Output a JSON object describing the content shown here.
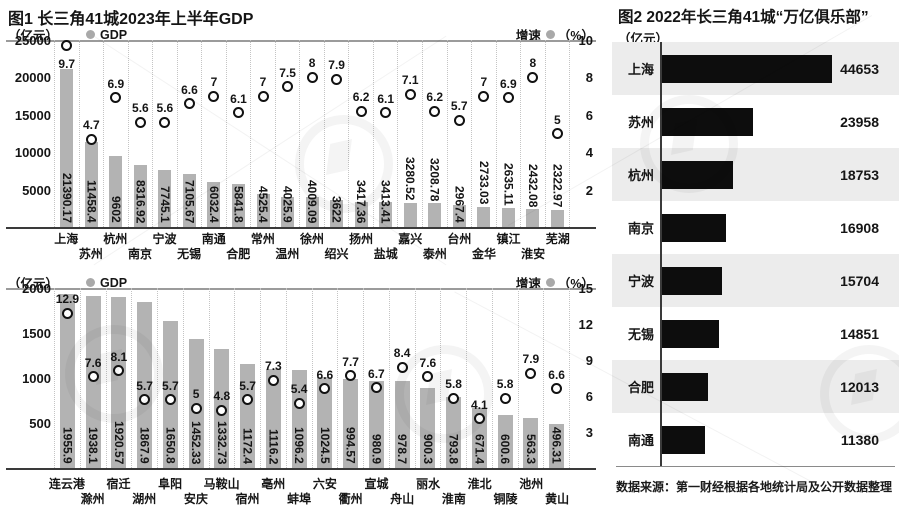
{
  "figure1": {
    "title": "图1 长三角41城2023年上半年GDP",
    "unit_left": "（亿元）",
    "legend_gdp": "GDP",
    "legend_growth": "增速",
    "unit_right": "（%）"
  },
  "figure2": {
    "title": "图2  2022年长三角41城“万亿俱乐部”",
    "unit": "（亿元）"
  },
  "source": "数据来源：第一财经根据各地统计局及公开数据整理",
  "colors": {
    "bar_gray": "#b3b3b3",
    "bar_black": "#0d0d0d",
    "row_band": "#ececec",
    "marker_outline": "#111111",
    "marker_fill": "#ffffff",
    "legend_dot": "#a9a9a9"
  },
  "chart_data": [
    {
      "type": "bar",
      "subtype": "bar+scatter combo",
      "title": "图1 长三角41城2023年上半年GDP",
      "categories": [
        "上海",
        "苏州",
        "杭州",
        "南京",
        "宁波",
        "无锡",
        "南通",
        "合肥",
        "常州",
        "温州",
        "徐州",
        "绍兴",
        "扬州",
        "盐城",
        "嘉兴",
        "泰州",
        "台州",
        "金华",
        "镇江",
        "淮安",
        "芜湖"
      ],
      "series": [
        {
          "name": "GDP",
          "type": "bar",
          "unit": "亿元",
          "values": [
            21390.17,
            11458.4,
            9602,
            8316.92,
            7745.1,
            7105.67,
            6032.4,
            5841.8,
            4525.4,
            4025.9,
            4009.09,
            3622,
            3417.36,
            3413.41,
            3280.52,
            3208.78,
            2967.4,
            2733.03,
            2635.11,
            2432.08,
            2322.97
          ]
        },
        {
          "name": "增速",
          "type": "scatter",
          "unit": "%",
          "values": [
            9.7,
            4.7,
            6.9,
            5.6,
            5.6,
            6.6,
            7,
            6.1,
            7,
            7.5,
            8,
            7.9,
            6.2,
            6.1,
            7.1,
            6.2,
            5.7,
            7,
            6.9,
            8,
            5
          ]
        }
      ],
      "ylabel_left": "（亿元）",
      "ylim_left": [
        0,
        25000
      ],
      "yticks_left": [
        5000,
        10000,
        15000,
        20000,
        25000
      ],
      "ylabel_right": "增速（%）",
      "ylim_right": [
        0,
        10
      ],
      "yticks_right": [
        2,
        4,
        6,
        8,
        10
      ],
      "grid": "vertical-dotted",
      "legend_position": "top"
    },
    {
      "type": "bar",
      "subtype": "bar+scatter combo",
      "title": "图1 长三角41城2023年上半年GDP",
      "categories": [
        "连云港",
        "滁州",
        "宿迁",
        "湖州",
        "阜阳",
        "安庆",
        "马鞍山",
        "宿州",
        "亳州",
        "蚌埠",
        "六安",
        "衢州",
        "宣城",
        "舟山",
        "丽水",
        "淮南",
        "淮北",
        "铜陵",
        "池州",
        "黄山"
      ],
      "series": [
        {
          "name": "GDP",
          "type": "bar",
          "unit": "亿元",
          "values": [
            1955.9,
            1938.1,
            1920.57,
            1867.9,
            1650.8,
            1452.33,
            1332.73,
            1172.4,
            1116.2,
            1096.2,
            1024.5,
            994.57,
            980.9,
            978.7,
            900.3,
            793.8,
            671.4,
            600.6,
            563.3,
            496.31
          ]
        },
        {
          "name": "增速",
          "type": "scatter",
          "unit": "%",
          "values": [
            12.9,
            7.6,
            8.1,
            5.7,
            5.7,
            5,
            4.8,
            5.7,
            7.3,
            5.4,
            6.6,
            7.7,
            6.7,
            8.4,
            7.6,
            5.8,
            4.1,
            5.8,
            7.9,
            6.6
          ]
        }
      ],
      "ylabel_left": "（亿元）",
      "ylim_left": [
        0,
        2000
      ],
      "yticks_left": [
        500,
        1000,
        1500,
        2000
      ],
      "ylabel_right": "增速（%）",
      "ylim_right": [
        0,
        15
      ],
      "yticks_right": [
        3,
        6,
        9,
        12,
        15
      ],
      "grid": "vertical-dotted",
      "legend_position": "top"
    },
    {
      "type": "bar",
      "orientation": "horizontal",
      "title": "图2  2022年长三角41城“万亿俱乐部”",
      "unit": "（亿元）",
      "categories": [
        "上海",
        "苏州",
        "杭州",
        "南京",
        "宁波",
        "无锡",
        "合肥",
        "南通"
      ],
      "values": [
        44653,
        23958,
        18753,
        16908,
        15704,
        14851,
        12013,
        11380
      ],
      "xlim": [
        0,
        47000
      ],
      "bar_color": "#0d0d0d",
      "banded_rows": "alternating starting with first row"
    }
  ]
}
